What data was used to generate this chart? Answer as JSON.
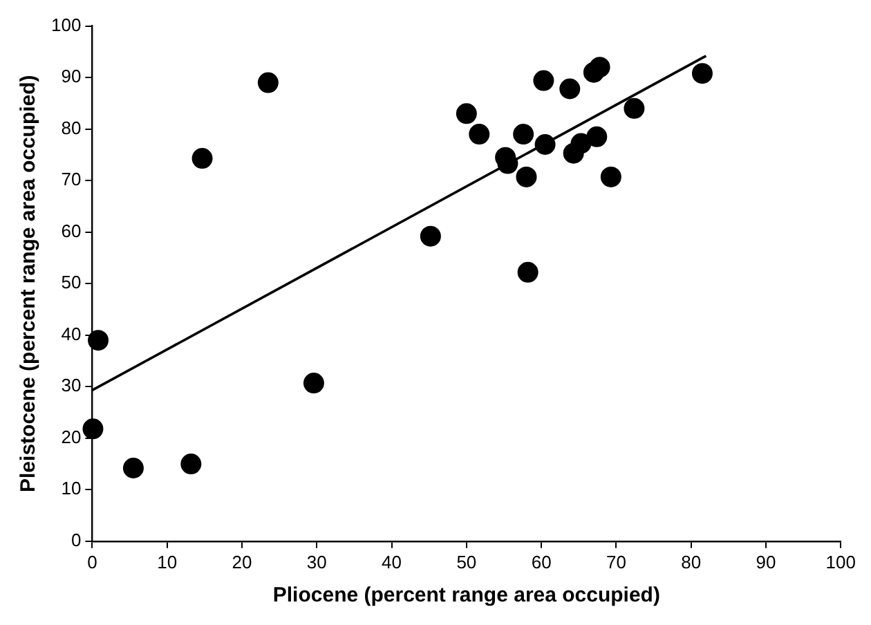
{
  "chart_data": {
    "type": "scatter",
    "xlabel": "Pliocene (percent range area occupied)",
    "ylabel": "Pleistocene (percent range area occupied)",
    "xlim": [
      0,
      100
    ],
    "xticks": [
      0,
      10,
      20,
      30,
      40,
      50,
      60,
      70,
      80,
      90,
      100
    ],
    "ylim": [
      0,
      100
    ],
    "yticks": [
      0,
      10,
      20,
      30,
      40,
      50,
      60,
      70,
      80,
      90,
      100
    ],
    "grid": false,
    "legend": false,
    "marker": "circle",
    "series": [
      {
        "color": "#000000",
        "x": [
          0.8,
          0.1,
          5.5,
          13.2,
          14.7,
          23.5,
          29.6,
          45.2,
          50,
          51.7,
          55.2,
          55.5,
          57.6,
          58,
          58.2,
          60.3,
          60.5,
          63.8,
          64.3,
          65.3,
          67,
          67.8,
          67.4,
          69.3,
          72.4,
          81.5
        ],
        "values": [
          39,
          21.8,
          14.2,
          15,
          74.3,
          89,
          30.7,
          59.2,
          83,
          79,
          74.5,
          73.3,
          79,
          70.7,
          52.2,
          89.4,
          77,
          87.8,
          75.3,
          77.2,
          91,
          92,
          78.5,
          70.7,
          84,
          90.8
        ]
      },
      {
        "type": "line",
        "color": "#000000",
        "marker": "none",
        "x": [
          0,
          82
        ],
        "values": [
          29.3,
          94.2
        ]
      }
    ]
  }
}
